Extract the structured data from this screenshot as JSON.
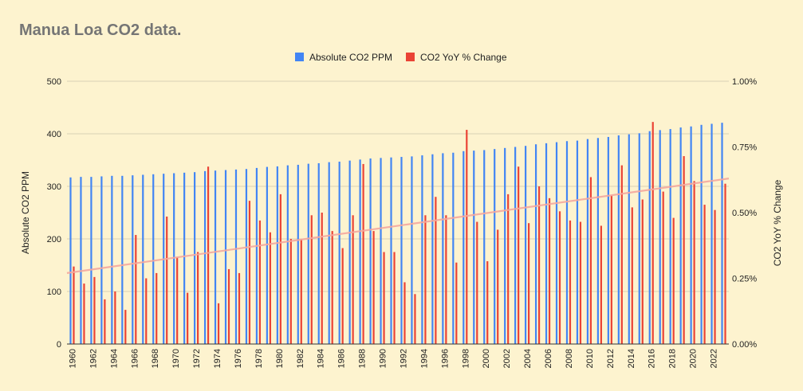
{
  "chart_data": {
    "type": "bar",
    "title": "Manua Loa CO2 data.",
    "xlabel": "",
    "ylabel": "Absolute CO2 PPM",
    "y2label": "CO2 YoY % Change",
    "ylim": [
      0,
      500
    ],
    "y2lim": [
      0,
      1.0
    ],
    "yticks": [
      "0",
      "100",
      "200",
      "300",
      "400",
      "500"
    ],
    "y2ticks": [
      "0.00%",
      "0.25%",
      "0.50%",
      "0.75%",
      "1.00%"
    ],
    "legend_position": "top",
    "grid": true,
    "x": [
      1960,
      1961,
      1962,
      1963,
      1964,
      1965,
      1966,
      1967,
      1968,
      1969,
      1970,
      1971,
      1972,
      1973,
      1974,
      1975,
      1976,
      1977,
      1978,
      1979,
      1980,
      1981,
      1982,
      1983,
      1984,
      1985,
      1986,
      1987,
      1988,
      1989,
      1990,
      1991,
      1992,
      1993,
      1994,
      1995,
      1996,
      1997,
      1998,
      1999,
      2000,
      2001,
      2002,
      2003,
      2004,
      2005,
      2006,
      2007,
      2008,
      2009,
      2010,
      2011,
      2012,
      2013,
      2014,
      2015,
      2016,
      2017,
      2018,
      2019,
      2020,
      2021,
      2022,
      2023
    ],
    "x_tick_labels": [
      "1960",
      "1962",
      "1964",
      "1966",
      "1968",
      "1970",
      "1972",
      "1974",
      "1976",
      "1978",
      "1980",
      "1982",
      "1984",
      "1986",
      "1988",
      "1990",
      "1992",
      "1994",
      "1996",
      "1998",
      "2000",
      "2002",
      "2004",
      "2006",
      "2008",
      "2010",
      "2012",
      "2014",
      "2016",
      "2018",
      "2020",
      "2022"
    ],
    "series": [
      {
        "name": "Absolute CO2 PPM",
        "color": "#4285F4",
        "axis": "left",
        "values": [
          317,
          318,
          318,
          319,
          320,
          320,
          321,
          322,
          323,
          324,
          325,
          326,
          327,
          329,
          330,
          331,
          332,
          333,
          335,
          337,
          338,
          340,
          341,
          343,
          344,
          346,
          347,
          349,
          351,
          353,
          354,
          355,
          356,
          357,
          359,
          361,
          363,
          364,
          367,
          368,
          369,
          371,
          373,
          375,
          377,
          380,
          382,
          384,
          386,
          387,
          390,
          392,
          394,
          397,
          399,
          401,
          405,
          407,
          409,
          412,
          414,
          417,
          419,
          421
        ]
      },
      {
        "name": "CO2 YoY % Change",
        "color": "#EA4335",
        "axis": "right",
        "values": [
          0.295,
          0.23,
          0.255,
          0.17,
          0.2,
          0.13,
          0.415,
          0.25,
          0.27,
          0.485,
          0.33,
          0.195,
          0.35,
          0.675,
          0.155,
          0.285,
          0.27,
          0.545,
          0.47,
          0.425,
          0.57,
          0.4,
          0.4,
          0.49,
          0.5,
          0.43,
          0.365,
          0.49,
          0.685,
          0.43,
          0.35,
          0.35,
          0.235,
          0.19,
          0.49,
          0.56,
          0.49,
          0.31,
          0.815,
          0.465,
          0.315,
          0.435,
          0.57,
          0.675,
          0.46,
          0.6,
          0.555,
          0.505,
          0.47,
          0.465,
          0.635,
          0.45,
          0.565,
          0.68,
          0.52,
          0.55,
          0.845,
          0.58,
          0.48,
          0.715,
          0.62,
          0.53,
          0.51,
          0.61
        ]
      }
    ],
    "trendline": {
      "series": "CO2 YoY % Change",
      "axis": "right",
      "start": 0.27,
      "end": 0.63,
      "color": "#F4A79D"
    },
    "background": "#FDF3CF"
  }
}
